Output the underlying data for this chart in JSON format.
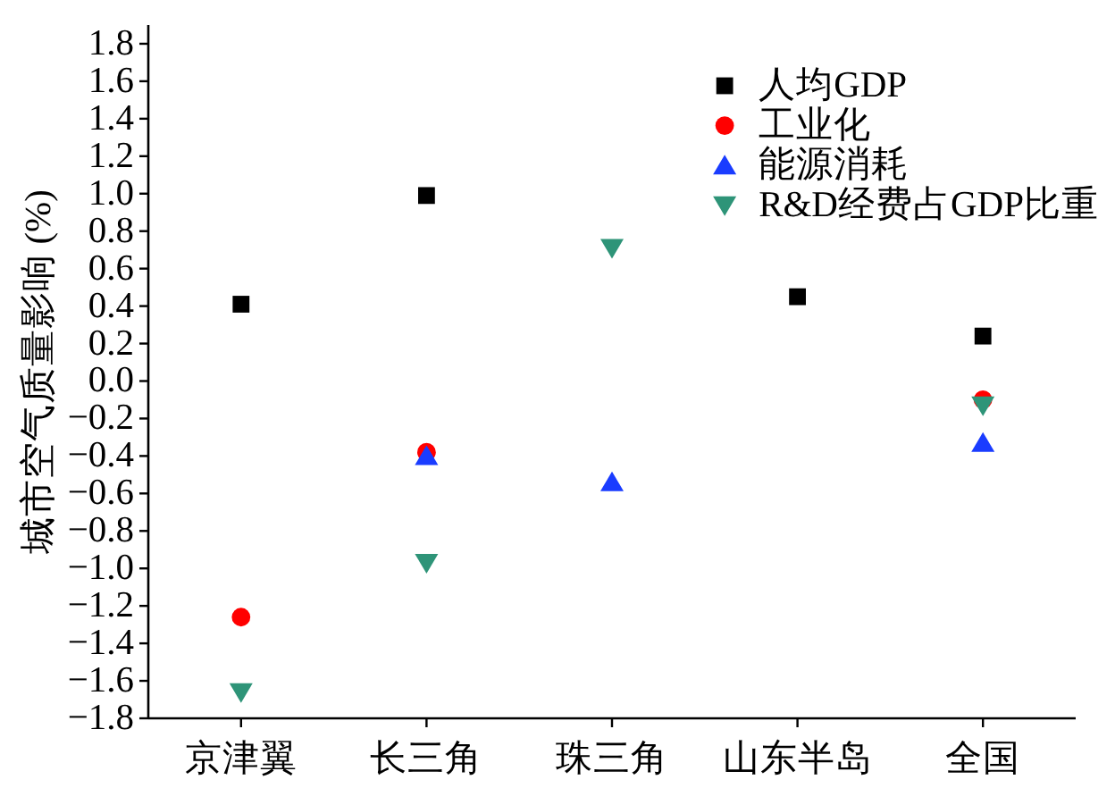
{
  "chart_data": {
    "type": "scatter",
    "ylabel": "城市空气质量影响 (%)",
    "categories": [
      "京津翼",
      "长三角",
      "珠三角",
      "山东半岛",
      "全国"
    ],
    "ylim": [
      -1.8,
      1.9
    ],
    "yticks": [
      {
        "value": -1.8,
        "label": "−1.8"
      },
      {
        "value": -1.6,
        "label": "−1.6"
      },
      {
        "value": -1.4,
        "label": "−1.4"
      },
      {
        "value": -1.2,
        "label": "−1.2"
      },
      {
        "value": -1.0,
        "label": "−1.0"
      },
      {
        "value": -0.8,
        "label": "−0.8"
      },
      {
        "value": -0.6,
        "label": "−0.6"
      },
      {
        "value": -0.4,
        "label": "−0.4"
      },
      {
        "value": -0.2,
        "label": "−0.2"
      },
      {
        "value": 0,
        "label": "0.0"
      },
      {
        "value": 0.2,
        "label": "0.2"
      },
      {
        "value": 0.4,
        "label": "0.4"
      },
      {
        "value": 0.6,
        "label": "0.6"
      },
      {
        "value": 0.8,
        "label": "0.8"
      },
      {
        "value": 1.0,
        "label": "1.0"
      },
      {
        "value": 1.2,
        "label": "1.2"
      },
      {
        "value": 1.4,
        "label": "1.4"
      },
      {
        "value": 1.6,
        "label": "1.6"
      },
      {
        "value": 1.8,
        "label": "1.8"
      }
    ],
    "legend": "top right",
    "series": [
      {
        "name": "人均GDP",
        "color": "#000000",
        "marker": "square",
        "values": [
          0.41,
          0.99,
          null,
          0.45,
          0.24
        ]
      },
      {
        "name": "工业化",
        "color": "#ff0000",
        "marker": "circle",
        "values": [
          -1.26,
          -0.38,
          null,
          null,
          -0.1
        ]
      },
      {
        "name": "能源消耗",
        "color": "#1a3cff",
        "marker": "triangle",
        "values": [
          null,
          -0.4,
          -0.54,
          null,
          -0.33
        ]
      },
      {
        "name": "R&D经费占GDP比重",
        "color": "#2e9478",
        "marker": "triangle-down",
        "values": [
          -1.66,
          -0.97,
          0.71,
          null,
          -0.13
        ]
      }
    ]
  }
}
